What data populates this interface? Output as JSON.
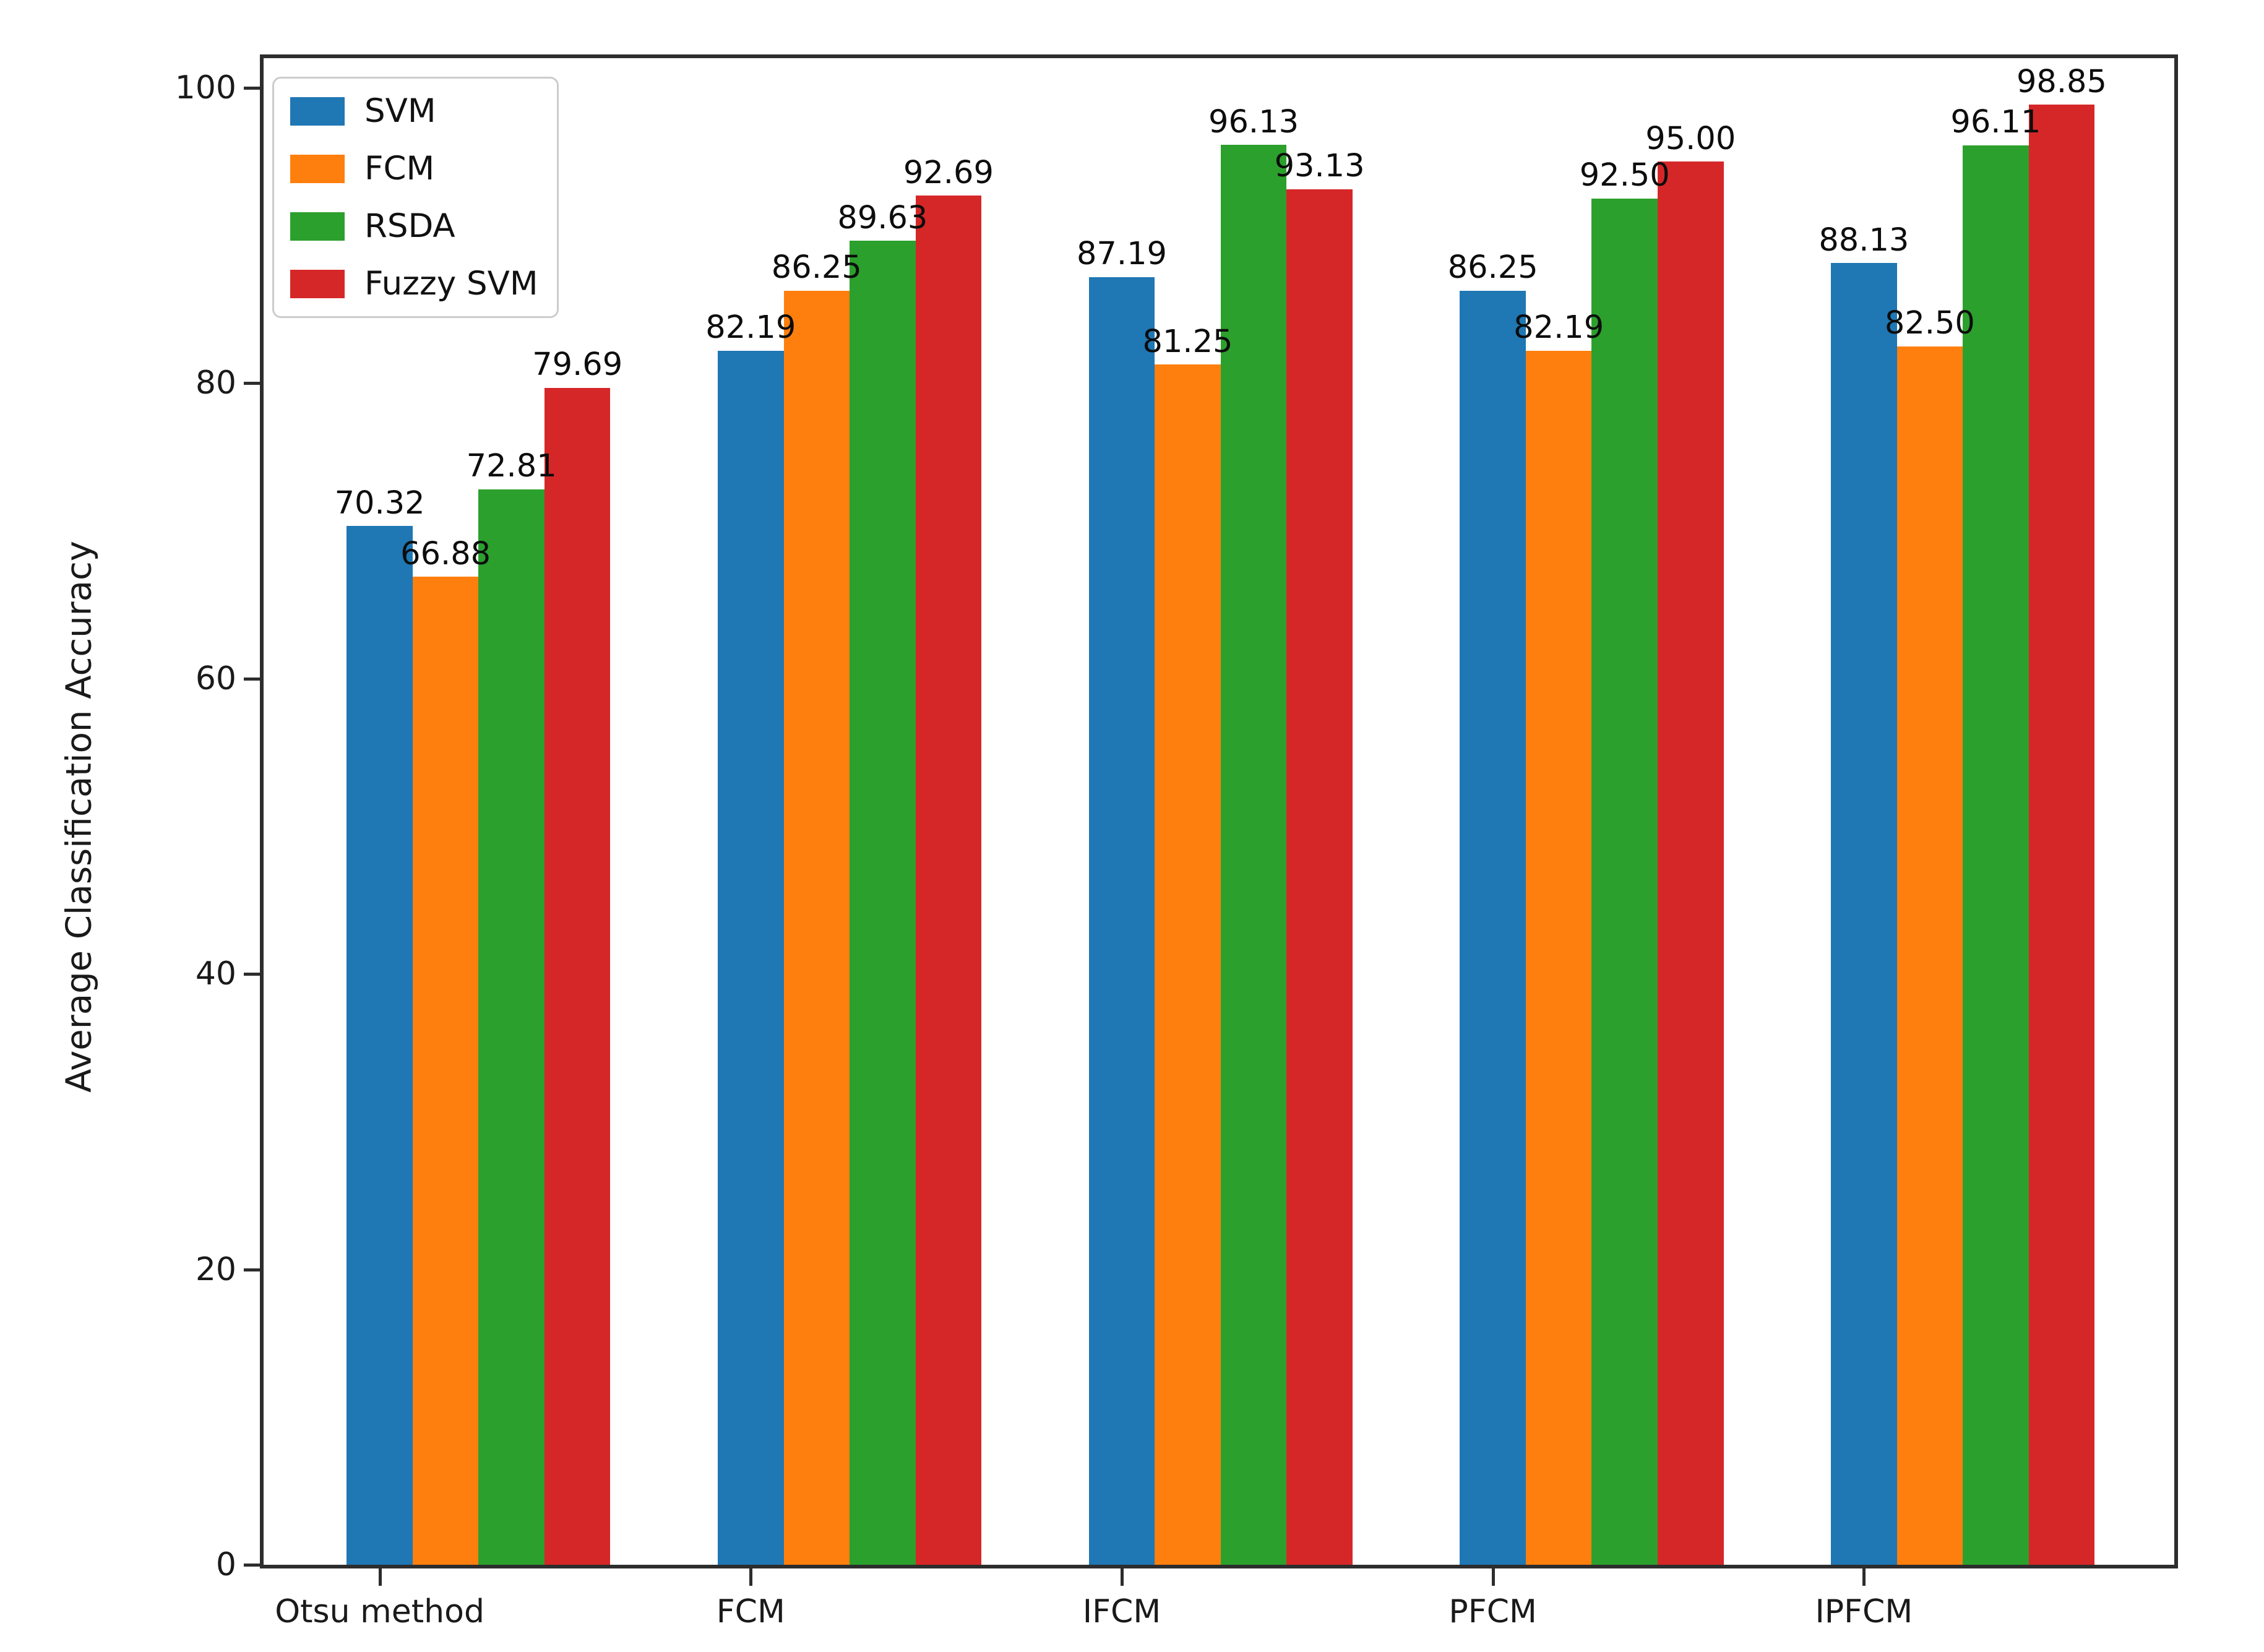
{
  "chart_data": {
    "type": "bar",
    "title": "",
    "xlabel": "",
    "ylabel": "Average Classification Accuracy",
    "categories": [
      "Otsu method",
      "FCM",
      "IFCM",
      "PFCM",
      "IPFCM"
    ],
    "series": [
      {
        "name": "SVM",
        "color": "#1f77b4",
        "values": [
          70.32,
          82.19,
          87.19,
          86.25,
          88.13
        ]
      },
      {
        "name": "FCM",
        "color": "#ff7f0e",
        "values": [
          66.88,
          86.25,
          81.25,
          82.19,
          82.5
        ]
      },
      {
        "name": "RSDA",
        "color": "#2ca02c",
        "values": [
          72.81,
          89.63,
          96.13,
          92.5,
          96.11
        ]
      },
      {
        "name": "Fuzzy SVM",
        "color": "#d62728",
        "values": [
          79.69,
          92.69,
          93.13,
          95.0,
          98.85
        ]
      }
    ],
    "ylim": [
      0,
      102
    ],
    "yticks": [
      0,
      20,
      40,
      60,
      80,
      100
    ],
    "value_label_decimals": 2,
    "legend_position": "upper left",
    "grid": false,
    "axis_color": "#2d2d2d",
    "text_color": "#1a1a1a"
  }
}
